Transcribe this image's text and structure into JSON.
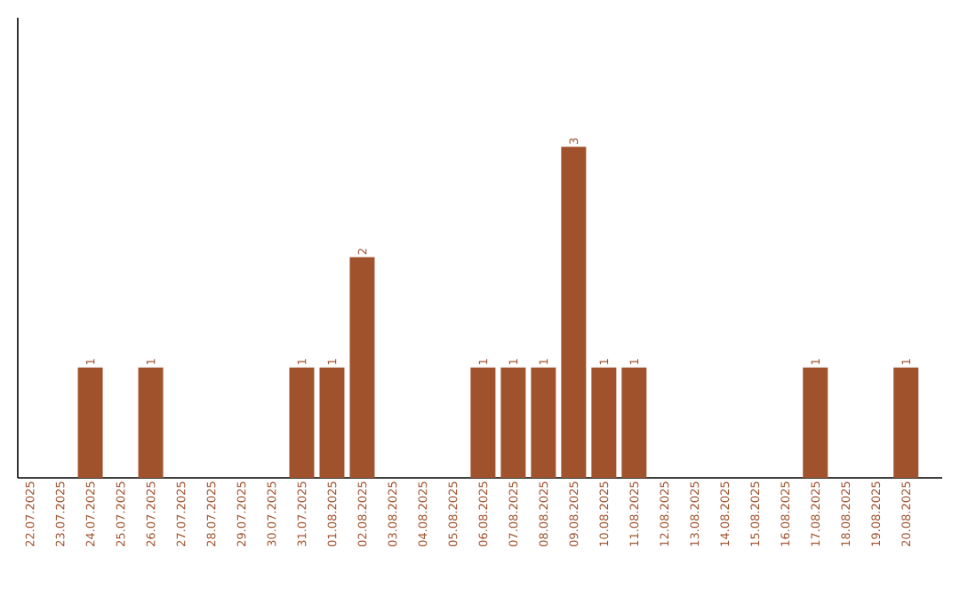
{
  "chart_data": {
    "type": "bar",
    "color": "#a0522d",
    "categories": [
      "22.07.2025",
      "23.07.2025",
      "24.07.2025",
      "25.07.2025",
      "26.07.2025",
      "27.07.2025",
      "28.07.2025",
      "29.07.2025",
      "30.07.2025",
      "31.07.2025",
      "01.08.2025",
      "02.08.2025",
      "03.08.2025",
      "04.08.2025",
      "05.08.2025",
      "06.08.2025",
      "07.08.2025",
      "08.08.2025",
      "09.08.2025",
      "10.08.2025",
      "11.08.2025",
      "12.08.2025",
      "13.08.2025",
      "14.08.2025",
      "15.08.2025",
      "16.08.2025",
      "17.08.2025",
      "18.08.2025",
      "19.08.2025",
      "20.08.2025"
    ],
    "values": [
      0,
      0,
      1,
      0,
      1,
      0,
      0,
      0,
      0,
      1,
      1,
      2,
      0,
      0,
      0,
      1,
      1,
      1,
      3,
      1,
      1,
      0,
      0,
      0,
      0,
      0,
      1,
      0,
      0,
      1
    ],
    "value_labels": [
      null,
      null,
      "1",
      null,
      "1",
      null,
      null,
      null,
      null,
      "1",
      "1",
      "2",
      null,
      null,
      null,
      "1",
      "1",
      "1",
      "3",
      "1",
      "1",
      null,
      null,
      null,
      null,
      null,
      "1",
      null,
      null,
      "1"
    ]
  }
}
